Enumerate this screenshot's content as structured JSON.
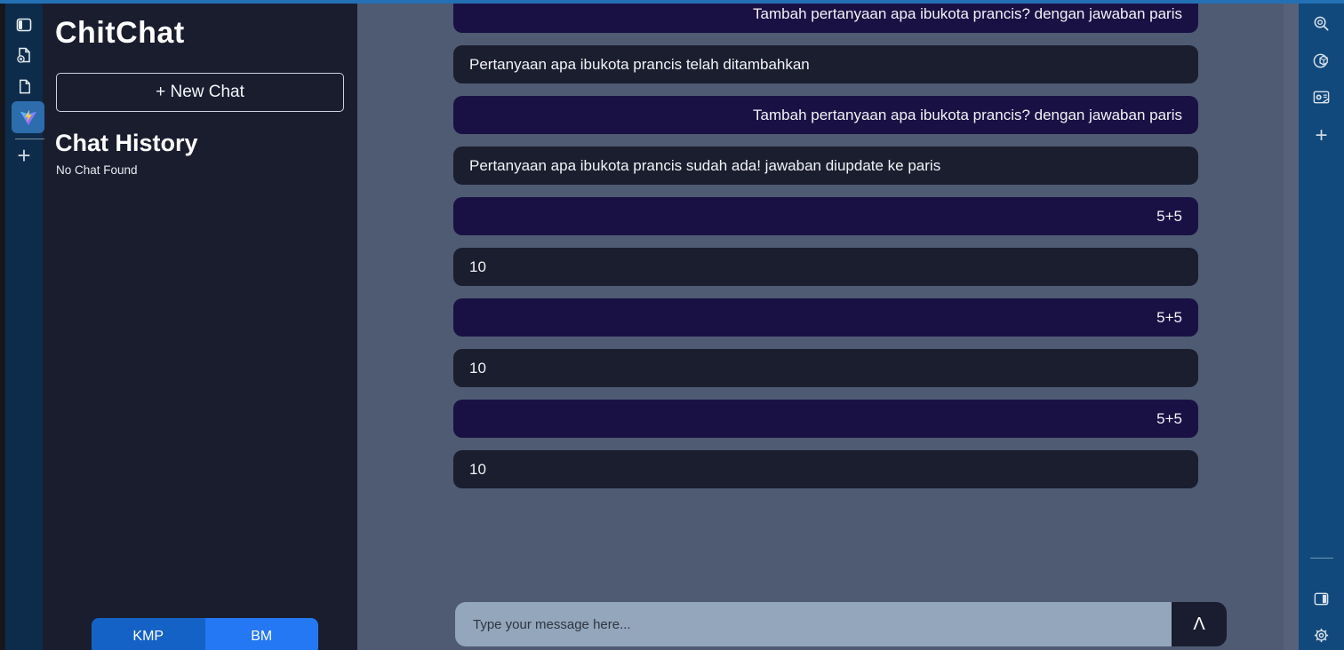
{
  "app": {
    "title": "ChitChat"
  },
  "left_rail": {
    "icons": [
      "window-icon",
      "document-remove-icon",
      "document-icon",
      "vite-logo-icon",
      "plus-icon"
    ]
  },
  "sidebar": {
    "new_chat_label": "+ New Chat",
    "history_title": "Chat History",
    "history_empty": "No Chat Found",
    "footer_buttons": [
      {
        "label": "KMP"
      },
      {
        "label": "BM"
      }
    ]
  },
  "chat": {
    "messages": [
      {
        "role": "user",
        "text": "Tambah pertanyaan apa ibukota prancis? dengan jawaban paris"
      },
      {
        "role": "bot",
        "text": "Pertanyaan apa ibukota prancis telah ditambahkan"
      },
      {
        "role": "user",
        "text": "Tambah pertanyaan apa ibukota prancis? dengan jawaban paris"
      },
      {
        "role": "bot",
        "text": "Pertanyaan apa ibukota prancis sudah ada! jawaban diupdate ke paris"
      },
      {
        "role": "user",
        "text": "5+5"
      },
      {
        "role": "bot",
        "text": "10"
      },
      {
        "role": "user",
        "text": "5+5"
      },
      {
        "role": "bot",
        "text": "10"
      },
      {
        "role": "user",
        "text": "5+5"
      },
      {
        "role": "bot",
        "text": "10"
      }
    ],
    "input_placeholder": "Type your message here...",
    "send_label": "Λ"
  },
  "right_rail": {
    "top_icons": [
      "search-icon",
      "hub-icon",
      "outlook-icon",
      "plus-icon"
    ],
    "bottom_icons": [
      "sidebar-toggle-icon",
      "settings-icon"
    ]
  },
  "colors": {
    "top_line": "#2470b4",
    "left_rail_bg": "#0d2c4b",
    "panel_bg": "#1a1d2e",
    "chat_bg": "#4f5b73",
    "user_bubble": "#191144",
    "bot_bubble": "#1a1e2e",
    "right_rail_bg": "#11497c",
    "input_bg": "#93a6bb",
    "send_btn_bg": "#1a1c30",
    "kmp_btn": "#1562c6",
    "bm_btn": "#2478f4"
  }
}
